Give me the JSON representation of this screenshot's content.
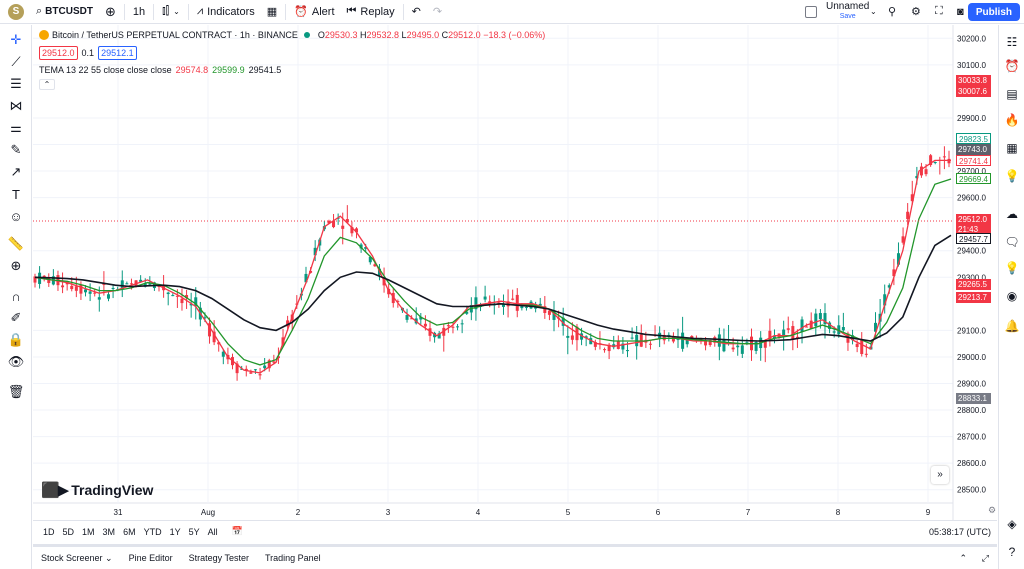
{
  "topbar": {
    "avatar_letter": "S",
    "symbol": "BTCUSDT",
    "interval": "1h",
    "indicators_label": "Indicators",
    "alert_label": "Alert",
    "replay_label": "Replay",
    "layout_name": "Unnamed",
    "layout_status": "Save",
    "publish_label": "Publish"
  },
  "legend": {
    "title": "Bitcoin / TetherUS PERPETUAL CONTRACT · 1h · BINANCE",
    "o_label": "O",
    "o_value": "29530.3",
    "h_label": "H",
    "h_value": "29532.8",
    "l_label": "L",
    "l_value": "29495.0",
    "c_label": "C",
    "c_value": "29512.0",
    "change": "−18.3 (−0.06%)",
    "bid": "29512.0",
    "spread": "0.1",
    "ask": "29512.1",
    "indicator_name": "TEMA 13 22 55 close close close",
    "tema1": "29574.8",
    "tema2": "29599.9",
    "tema3": "29541.5"
  },
  "price_axis": {
    "ticks": [
      "30200.0",
      "30100.0",
      "29900.0",
      "29800.0",
      "29700.0",
      "29600.0",
      "29400.0",
      "29300.0",
      "29100.0",
      "29000.0",
      "28900.0",
      "28800.0",
      "28700.0",
      "28600.0",
      "28500.0"
    ],
    "tags": {
      "high_label": "30033.8",
      "high2_label": "30007.6",
      "t1": "29823.5",
      "current_top": "29743.0",
      "t_red": "29741.4",
      "t_green": "29669.4",
      "last_price": "29512.0",
      "countdown": "21:43",
      "t_black": "29457.7",
      "t_red2": "29265.5",
      "t_green2": "29213.7",
      "low_label": "28833.1"
    }
  },
  "time_axis": {
    "labels": [
      "31",
      "Aug",
      "2",
      "3",
      "4",
      "5",
      "6",
      "7",
      "8",
      "9"
    ]
  },
  "range_bar": {
    "ranges": [
      "1D",
      "5D",
      "1M",
      "3M",
      "6M",
      "YTD",
      "1Y",
      "5Y",
      "All"
    ],
    "clock": "05:38:17 (UTC)"
  },
  "panel_tabs": [
    "Stock Screener",
    "Pine Editor",
    "Strategy Tester",
    "Trading Panel"
  ],
  "brand": "TradingView",
  "colors": {
    "up": "#089981",
    "down": "#f23645",
    "tema_fast": "#f23645",
    "tema_mid": "#22962b",
    "tema_slow": "#131722",
    "accent": "#2962ff"
  },
  "chart_data": {
    "type": "candlestick",
    "title": "Bitcoin / TetherUS PERPETUAL CONTRACT · 1h · BINANCE",
    "ylim": [
      28450,
      30250
    ],
    "x_ticks": [
      "31",
      "Aug",
      "2",
      "3",
      "4",
      "5",
      "6",
      "7",
      "8",
      "9"
    ],
    "series": [
      {
        "name": "TEMA 13",
        "values": [
          29300,
          29290,
          29280,
          29260,
          29240,
          29250,
          29270,
          29290,
          29260,
          29230,
          29190,
          29100,
          29000,
          28950,
          28940,
          28980,
          29150,
          29300,
          29490,
          29530,
          29470,
          29380,
          29250,
          29170,
          29120,
          29080,
          29120,
          29190,
          29200,
          29210,
          29200,
          29200,
          29180,
          29120,
          29080,
          29050,
          29040,
          29050,
          29060,
          29070,
          29070,
          29060,
          29060,
          29050,
          29050,
          29050,
          29080,
          29080,
          29120,
          29140,
          29100,
          29060,
          29030,
          29220,
          29400,
          29700,
          29740,
          29740
        ]
      },
      {
        "name": "TEMA 22",
        "values": [
          29300,
          29290,
          29285,
          29270,
          29250,
          29250,
          29260,
          29280,
          29270,
          29240,
          29200,
          29130,
          29050,
          28990,
          28970,
          28990,
          29100,
          29220,
          29380,
          29450,
          29430,
          29370,
          29280,
          29210,
          29150,
          29120,
          29130,
          29180,
          29195,
          29200,
          29195,
          29195,
          29180,
          29140,
          29100,
          29070,
          29060,
          29060,
          29060,
          29070,
          29070,
          29065,
          29060,
          29055,
          29050,
          29050,
          29070,
          29080,
          29100,
          29120,
          29100,
          29075,
          29050,
          29130,
          29260,
          29520,
          29650,
          29670
        ]
      },
      {
        "name": "TEMA 55",
        "values": [
          29300,
          29298,
          29295,
          29290,
          29280,
          29270,
          29265,
          29268,
          29270,
          29265,
          29250,
          29220,
          29180,
          29140,
          29110,
          29100,
          29130,
          29180,
          29250,
          29300,
          29320,
          29315,
          29290,
          29260,
          29230,
          29200,
          29190,
          29190,
          29195,
          29200,
          29195,
          29190,
          29180,
          29160,
          29140,
          29120,
          29105,
          29095,
          29085,
          29080,
          29075,
          29070,
          29068,
          29065,
          29062,
          29060,
          29062,
          29065,
          29075,
          29085,
          29080,
          29070,
          29060,
          29090,
          29150,
          29300,
          29420,
          29458
        ]
      }
    ],
    "last_close": 29512.0
  }
}
